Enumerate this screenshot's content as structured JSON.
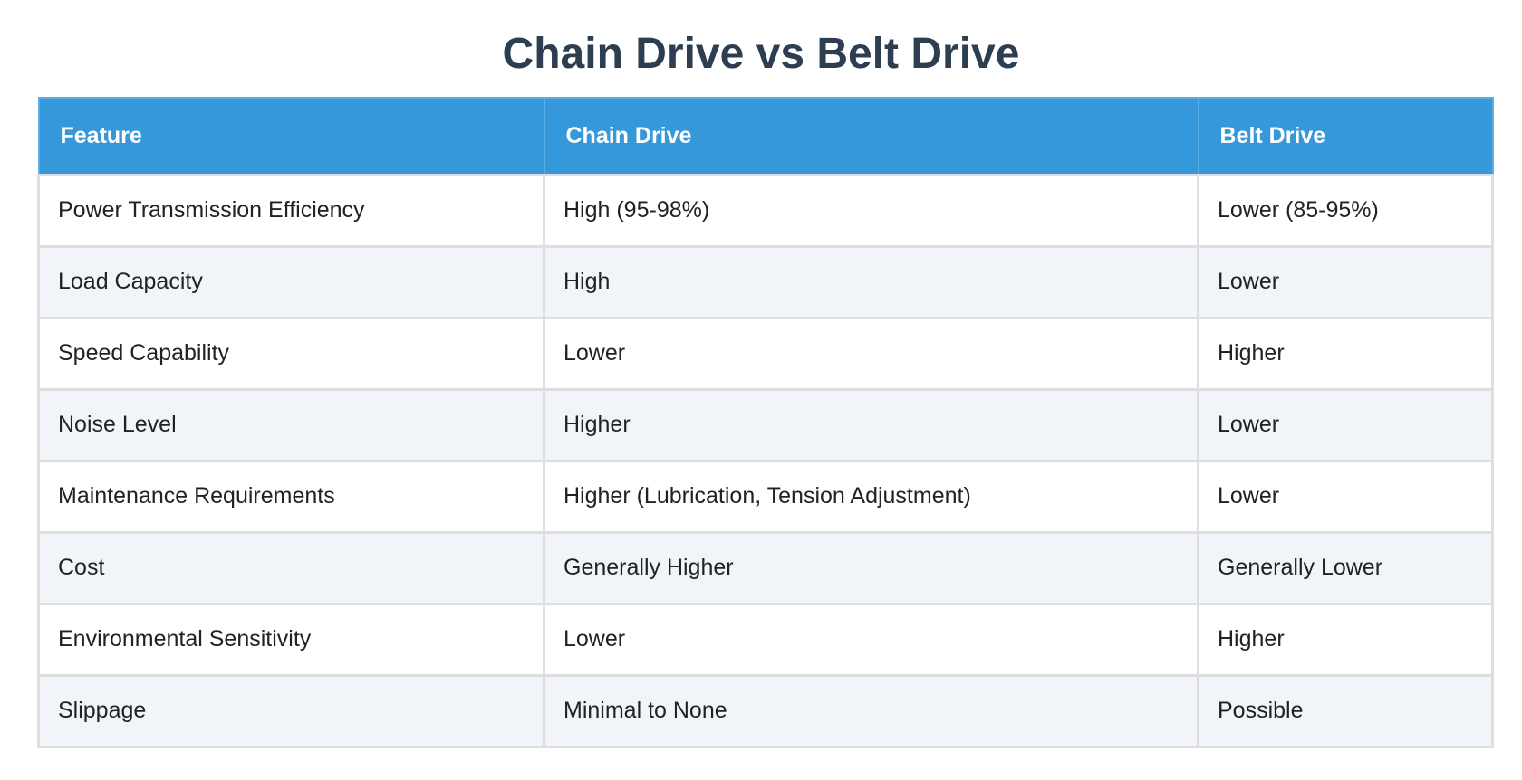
{
  "title": "Chain Drive vs Belt Drive",
  "table": {
    "headers": [
      "Feature",
      "Chain Drive",
      "Belt Drive"
    ],
    "rows": [
      [
        "Power Transmission Efficiency",
        "High (95-98%)",
        "Lower (85-95%)"
      ],
      [
        "Load Capacity",
        "High",
        "Lower"
      ],
      [
        "Speed Capability",
        "Lower",
        "Higher"
      ],
      [
        "Noise Level",
        "Higher",
        "Lower"
      ],
      [
        "Maintenance Requirements",
        "Higher (Lubrication, Tension Adjustment)",
        "Lower"
      ],
      [
        "Cost",
        "Generally Higher",
        "Generally Lower"
      ],
      [
        "Environmental Sensitivity",
        "Lower",
        "Higher"
      ],
      [
        "Slippage",
        "Minimal to None",
        "Possible"
      ]
    ]
  },
  "colors": {
    "title": "#2c3e50",
    "header_background": "#3498db",
    "header_text": "#ffffff",
    "row_alt_background": "#f1f5fa",
    "border": "#dedede"
  }
}
